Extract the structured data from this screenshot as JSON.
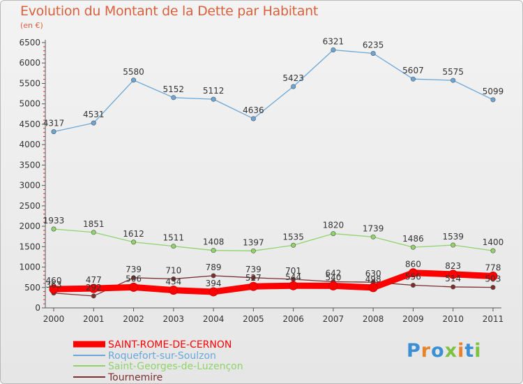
{
  "header": {
    "title": "Evolution du Montant de la Dette par Habitant",
    "unit": "(en €)"
  },
  "chart_data": {
    "type": "line",
    "x": [
      "2000",
      "2001",
      "2002",
      "2003",
      "2004",
      "2005",
      "2006",
      "2007",
      "2008",
      "2009",
      "2010",
      "2011"
    ],
    "yticks": [
      "0",
      "500",
      "1000",
      "1500",
      "2000",
      "2500",
      "3000",
      "3500",
      "4000",
      "4500",
      "5000",
      "5500",
      "6000",
      "6500"
    ],
    "ylim": [
      0,
      6500
    ],
    "grid": false,
    "legend_position": "bottom-left",
    "series": [
      {
        "name": "SAINT-ROME-DE-CERNON",
        "color": "#ff0000",
        "values": [
          460,
          477,
          506,
          434,
          394,
          527,
          544,
          540,
          498,
          860,
          823,
          778
        ],
        "labels": [
          "460",
          "477",
          "506",
          "434",
          "394",
          "527",
          "544",
          "540",
          "498",
          "860",
          "823",
          "778"
        ]
      },
      {
        "name": "Roquefort-sur-Soulzon",
        "color": "#6aa7d8",
        "values": [
          4317,
          4531,
          5580,
          5152,
          5112,
          4636,
          5423,
          6321,
          6235,
          5607,
          5575,
          5099
        ],
        "labels": [
          "4317",
          "4531",
          "5580",
          "5152",
          "5112",
          "4636",
          "5423",
          "6321",
          "6235",
          "5607",
          "5575",
          "5099"
        ]
      },
      {
        "name": "Saint-Georges-de-Luzençon",
        "color": "#8fd36a",
        "values": [
          1933,
          1851,
          1612,
          1511,
          1408,
          1397,
          1535,
          1820,
          1739,
          1486,
          1539,
          1400
        ],
        "labels": [
          "1933",
          "1851",
          "1612",
          "1511",
          "1408",
          "1397",
          "1535",
          "1820",
          "1739",
          "1486",
          "1539",
          "1400"
        ]
      },
      {
        "name": "Tournemire",
        "color": "#7b2e2e",
        "values": [
          363,
          292,
          739,
          710,
          789,
          739,
          701,
          642,
          630,
          556,
          514,
          503
        ],
        "labels": [
          "363",
          "292",
          "739",
          "710",
          "789",
          "739",
          "701",
          "642",
          "630",
          "556",
          "514",
          "503"
        ]
      }
    ]
  },
  "brand": {
    "name": "Proxiti",
    "letters": [
      {
        "ch": "P",
        "color": "#3b8fd4"
      },
      {
        "ch": "r",
        "color": "#e8832a"
      },
      {
        "ch": "o",
        "color": "#3b8fd4"
      },
      {
        "ch": "x",
        "color": "#7cc142"
      },
      {
        "ch": "i",
        "color": "#e8832a"
      },
      {
        "ch": "t",
        "color": "#3b8fd4"
      },
      {
        "ch": "i",
        "color": "#7cc142"
      }
    ]
  }
}
